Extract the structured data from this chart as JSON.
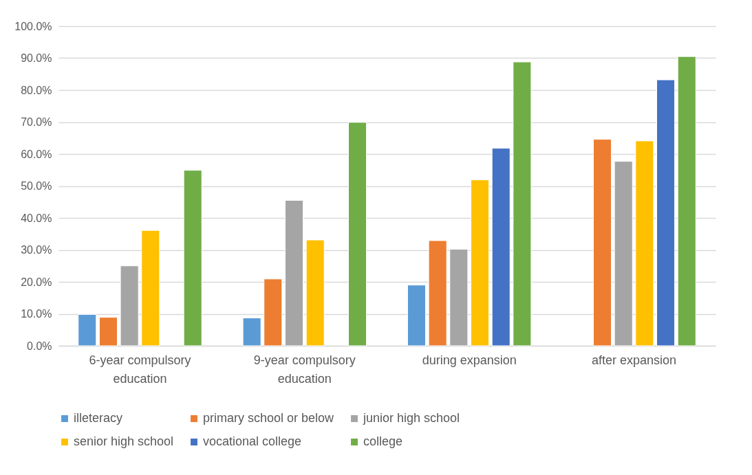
{
  "chart_data": {
    "type": "bar",
    "categories": [
      "6-year compulsory education",
      "9-year compulsory education",
      "during expansion",
      "after expansion"
    ],
    "series": [
      {
        "name": "illeteracy",
        "color": "#5b9bd5",
        "values": [
          9.8,
          8.7,
          19.0,
          null
        ]
      },
      {
        "name": "primary school or below",
        "color": "#ed7d31",
        "values": [
          8.9,
          20.9,
          32.9,
          64.6
        ]
      },
      {
        "name": "junior high school",
        "color": "#a5a5a5",
        "values": [
          25.0,
          45.5,
          30.2,
          57.7
        ]
      },
      {
        "name": "senior high school",
        "color": "#ffc000",
        "values": [
          36.1,
          33.1,
          51.9,
          64.1
        ]
      },
      {
        "name": "vocational college",
        "color": "#4472c4",
        "values": [
          null,
          null,
          61.8,
          83.2
        ]
      },
      {
        "name": "college",
        "color": "#70ad47",
        "values": [
          54.9,
          69.9,
          88.8,
          90.5
        ]
      }
    ],
    "ylim": [
      0,
      100
    ],
    "yticks": [
      {
        "value": 0,
        "label": "0.0%"
      },
      {
        "value": 10,
        "label": "10.0%"
      },
      {
        "value": 20,
        "label": "20.0%"
      },
      {
        "value": 30,
        "label": "30.0%"
      },
      {
        "value": 40,
        "label": "40.0%"
      },
      {
        "value": 50,
        "label": "50.0%"
      },
      {
        "value": 60,
        "label": "60.0%"
      },
      {
        "value": 70,
        "label": "70.0%"
      },
      {
        "value": 80,
        "label": "80.0%"
      },
      {
        "value": 90,
        "label": "90.0%"
      },
      {
        "value": 100,
        "label": "100.0%"
      }
    ],
    "grid": "y",
    "legend": "bottom"
  }
}
